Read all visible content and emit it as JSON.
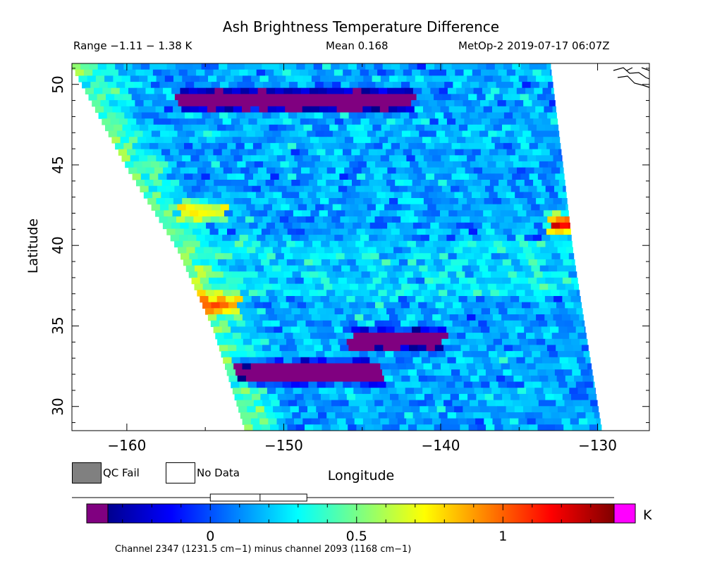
{
  "header": {
    "title": "Ash Brightness Temperature Difference",
    "range_text": "Range −1.11 − 1.38 K",
    "mean_text": "Mean 0.168",
    "satellite_time": "MetOp-2 2019-07-17 06:07Z"
  },
  "chart_data": {
    "type": "heatmap",
    "title": "Ash Brightness Temperature Difference",
    "xlabel": "Longitude",
    "ylabel": "Latitude",
    "xlim": [
      -163.5,
      -126.7
    ],
    "ylim": [
      28.5,
      51.3
    ],
    "x_ticks": [
      -160,
      -150,
      -140,
      -130
    ],
    "y_ticks": [
      50,
      45,
      40,
      35,
      30
    ],
    "x_tick_labels": [
      "−160",
      "−150",
      "−140",
      "−130"
    ],
    "y_tick_labels": [
      "50",
      "45",
      "40",
      "35",
      "30"
    ],
    "grid": false,
    "value_range": [
      -1.11,
      1.38
    ],
    "mean": 0.168,
    "units": "K",
    "swath_lon_edges_at_lat": [
      {
        "lat": 51.3,
        "west": -163.5,
        "east": -133.0
      },
      {
        "lat": 45.0,
        "west": -160.0,
        "east": -132.2
      },
      {
        "lat": 40.0,
        "west": -156.8,
        "east": -131.6
      },
      {
        "lat": 35.0,
        "west": -154.5,
        "east": -130.8
      },
      {
        "lat": 28.5,
        "west": -152.4,
        "east": -129.7
      }
    ],
    "features": [
      {
        "label": "low band",
        "lat": 49.2,
        "lon_from": -157.0,
        "lon_to": -142.0,
        "value": -1.0
      },
      {
        "label": "low band",
        "lat": 32.3,
        "lon_from": -153.5,
        "lon_to": -144.0,
        "value": -1.0
      },
      {
        "label": "low band",
        "lat": 34.3,
        "lon_from": -146.0,
        "lon_to": -140.0,
        "value": -0.9
      },
      {
        "label": "high spot",
        "lat": 41.5,
        "lon_from": -133.5,
        "lon_to": -131.6,
        "value": 1.3
      },
      {
        "label": "elevated",
        "lat": 42.3,
        "lon_from": -157.0,
        "lon_to": -154.0,
        "value": 0.75
      },
      {
        "label": "elevated",
        "lat": 36.5,
        "lon_from": -156.0,
        "lon_to": -153.0,
        "value": 0.8
      }
    ]
  },
  "legend": {
    "qc_fail_label": "QC Fail",
    "no_data_label": "No Data",
    "qc_fail_color": "#808080",
    "no_data_color": "#ffffff"
  },
  "colorbar": {
    "min": -0.35,
    "max": 1.38,
    "ticks": [
      0,
      0.5,
      1
    ],
    "tick_labels": [
      "0",
      "0.5",
      "1"
    ],
    "unit": "K",
    "under_color": "#800080",
    "over_color": "#ff00ff",
    "box_range": [
      0.0,
      0.33
    ],
    "box_median": 0.17,
    "whisker_range": [
      -1.11,
      1.38
    ]
  },
  "caption": "Channel 2347 (1231.5 cm−1) minus channel 2093 (1168 cm−1)"
}
